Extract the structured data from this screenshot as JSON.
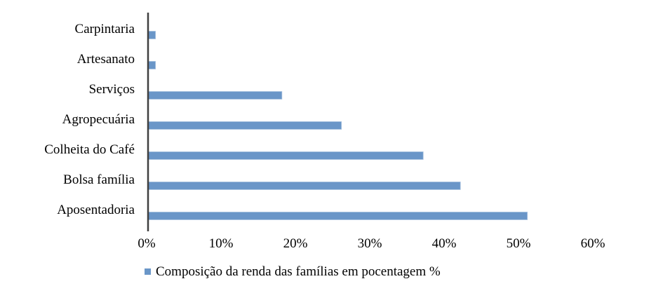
{
  "chart_data": {
    "type": "bar",
    "orientation": "horizontal",
    "title": "",
    "xlabel": "",
    "ylabel": "",
    "categories": [
      "Carpintaria",
      "Artesanato",
      "Serviços",
      "Agropecuária",
      "Colheita do Café",
      "Bolsa família",
      "Aposentadoria"
    ],
    "series": [
      {
        "name": "Composição da renda das famílias em pocentagem %",
        "values": [
          1,
          1,
          18,
          26,
          37,
          42,
          51
        ],
        "color": "#6a96c8"
      }
    ],
    "xlim": [
      0,
      60
    ],
    "xticks": [
      "0%",
      "10%",
      "20%",
      "30%",
      "40%",
      "50%",
      "60%"
    ],
    "grid": false,
    "legend_position": "bottom"
  }
}
